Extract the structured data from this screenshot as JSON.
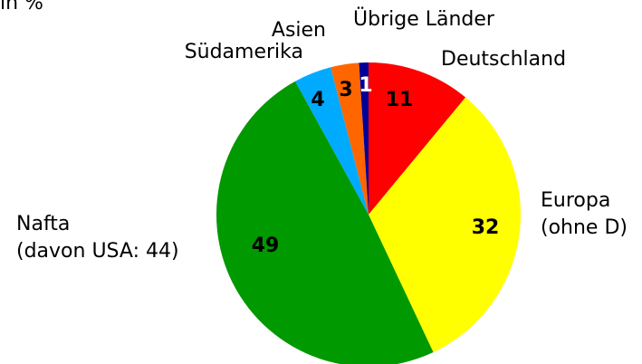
{
  "chart_data": {
    "type": "pie",
    "subtitle": "in %",
    "categories": [
      [
        "Deutschland"
      ],
      [
        "Europa",
        "(ohne D)"
      ],
      [
        "Nafta",
        "(davon USA: 44)"
      ],
      [
        "Südamerika"
      ],
      [
        "Asien"
      ],
      [
        "Übrige Länder"
      ]
    ],
    "values": [
      11,
      32,
      49,
      4,
      3,
      1
    ],
    "colors": [
      "#ff0000",
      "#ffff00",
      "#009900",
      "#00aaff",
      "#ff6600",
      "#000099"
    ]
  }
}
